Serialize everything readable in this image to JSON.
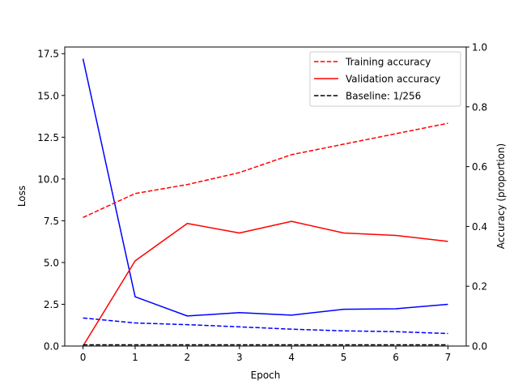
{
  "chart_data": {
    "type": "line",
    "title": "",
    "xlabel": "Epoch",
    "ylabel_left": "Loss",
    "ylabel_right": "Accuracy (proportion)",
    "x": [
      0,
      1,
      2,
      3,
      4,
      5,
      6,
      7
    ],
    "xlim": [
      -0.35,
      7.35
    ],
    "xticks": [
      "0",
      "1",
      "2",
      "3",
      "4",
      "5",
      "6",
      "7"
    ],
    "ylim_left": [
      0,
      17.9
    ],
    "yticks_left": [
      "0.0",
      "2.5",
      "5.0",
      "7.5",
      "10.0",
      "12.5",
      "15.0",
      "17.5"
    ],
    "ylim_right": [
      0,
      1.0
    ],
    "yticks_right": [
      "0.0",
      "0.2",
      "0.4",
      "0.6",
      "0.8",
      "1.0"
    ],
    "grid": false,
    "legend_position": "top-right",
    "series": [
      {
        "name": "",
        "axis": "left",
        "color": "#0000ff",
        "style": "dashed",
        "values": [
          1.68,
          1.38,
          1.28,
          1.15,
          1.01,
          0.91,
          0.86,
          0.75
        ]
      },
      {
        "name": "",
        "axis": "left",
        "color": "#0000ff",
        "style": "solid",
        "values": [
          17.2,
          2.95,
          1.8,
          2.0,
          1.85,
          2.2,
          2.23,
          2.5
        ]
      },
      {
        "name": "Training accuracy",
        "axis": "right",
        "color": "#ff0000",
        "style": "dashed",
        "values": [
          0.43,
          0.51,
          0.54,
          0.58,
          0.64,
          0.675,
          0.71,
          0.745
        ]
      },
      {
        "name": "Validation accuracy",
        "axis": "right",
        "color": "#ff0000",
        "style": "solid",
        "values": [
          0.0,
          0.285,
          0.41,
          0.378,
          0.417,
          0.378,
          0.37,
          0.35
        ]
      },
      {
        "name": "Baseline: 1/256",
        "axis": "right",
        "color": "#000000",
        "style": "dashed",
        "values": [
          0.0039,
          0.0039,
          0.0039,
          0.0039,
          0.0039,
          0.0039,
          0.0039,
          0.0039
        ]
      }
    ]
  }
}
